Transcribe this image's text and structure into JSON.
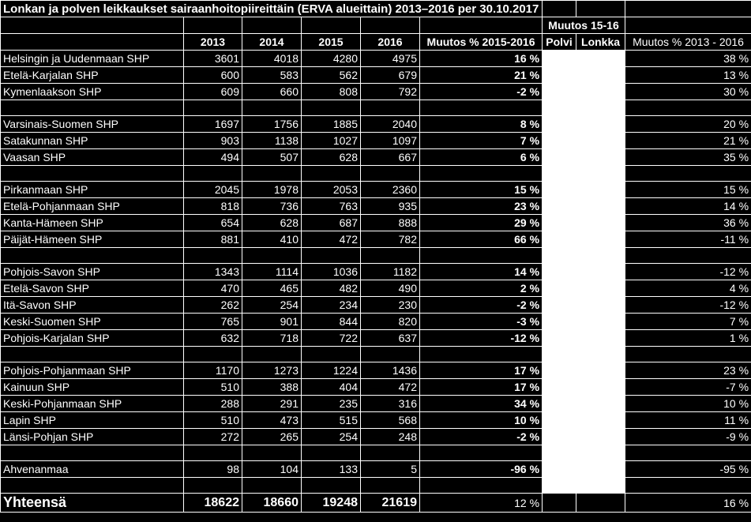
{
  "title": "Lonkan ja polven leikkaukset sairaanhoitopiireittäin (ERVA alueittain) 2013–2016 per 30.10.2017",
  "header_group": "Muutos 15-16",
  "headers": [
    "2013",
    "2014",
    "2015",
    "2016",
    "Muutos % 2015-2016",
    "Polvi",
    "Lonkka",
    "Muutos % 2013 - 2016"
  ],
  "groups": [
    [
      {
        "name": "Helsingin ja Uudenmaan SHP",
        "v2013": "3601",
        "v2014": "4018",
        "v2015": "4280",
        "v2016": "4975",
        "chg1516": "16 %",
        "chg1316": "38 %"
      },
      {
        "name": "Etelä-Karjalan SHP",
        "v2013": "600",
        "v2014": "583",
        "v2015": "562",
        "v2016": "679",
        "chg1516": "21 %",
        "chg1316": "13 %"
      },
      {
        "name": "Kymenlaakson SHP",
        "v2013": "609",
        "v2014": "660",
        "v2015": "808",
        "v2016": "792",
        "chg1516": "-2 %",
        "chg1316": "30 %"
      }
    ],
    [
      {
        "name": "Varsinais-Suomen SHP",
        "v2013": "1697",
        "v2014": "1756",
        "v2015": "1885",
        "v2016": "2040",
        "chg1516": "8 %",
        "chg1316": "20 %"
      },
      {
        "name": "Satakunnan SHP",
        "v2013": "903",
        "v2014": "1138",
        "v2015": "1027",
        "v2016": "1097",
        "chg1516": "7 %",
        "chg1316": "21 %"
      },
      {
        "name": "Vaasan SHP",
        "v2013": "494",
        "v2014": "507",
        "v2015": "628",
        "v2016": "667",
        "chg1516": "6 %",
        "chg1316": "35 %"
      }
    ],
    [
      {
        "name": "Pirkanmaan SHP",
        "v2013": "2045",
        "v2014": "1978",
        "v2015": "2053",
        "v2016": "2360",
        "chg1516": "15 %",
        "chg1316": "15 %"
      },
      {
        "name": "Etelä-Pohjanmaan SHP",
        "v2013": "818",
        "v2014": "736",
        "v2015": "763",
        "v2016": "935",
        "chg1516": "23 %",
        "chg1316": "14 %"
      },
      {
        "name": "Kanta-Hämeen SHP",
        "v2013": "654",
        "v2014": "628",
        "v2015": "687",
        "v2016": "888",
        "chg1516": "29 %",
        "chg1316": "36 %"
      },
      {
        "name": "Päijät-Hämeen SHP",
        "v2013": "881",
        "v2014": "410",
        "v2015": "472",
        "v2016": "782",
        "chg1516": "66 %",
        "chg1316": "-11 %"
      }
    ],
    [
      {
        "name": "Pohjois-Savon SHP",
        "v2013": "1343",
        "v2014": "1114",
        "v2015": "1036",
        "v2016": "1182",
        "chg1516": "14 %",
        "chg1316": "-12 %"
      },
      {
        "name": "Etelä-Savon SHP",
        "v2013": "470",
        "v2014": "465",
        "v2015": "482",
        "v2016": "490",
        "chg1516": "2 %",
        "chg1316": "4 %"
      },
      {
        "name": "Itä-Savon SHP",
        "v2013": "262",
        "v2014": "254",
        "v2015": "234",
        "v2016": "230",
        "chg1516": "-2 %",
        "chg1316": "-12 %"
      },
      {
        "name": "Keski-Suomen SHP",
        "v2013": "765",
        "v2014": "901",
        "v2015": "844",
        "v2016": "820",
        "chg1516": "-3 %",
        "chg1316": "7 %"
      },
      {
        "name": "Pohjois-Karjalan SHP",
        "v2013": "632",
        "v2014": "718",
        "v2015": "722",
        "v2016": "637",
        "chg1516": "-12 %",
        "chg1316": "1 %"
      }
    ],
    [
      {
        "name": "Pohjois-Pohjanmaan SHP",
        "v2013": "1170",
        "v2014": "1273",
        "v2015": "1224",
        "v2016": "1436",
        "chg1516": "17 %",
        "chg1316": "23 %"
      },
      {
        "name": "Kainuun SHP",
        "v2013": "510",
        "v2014": "388",
        "v2015": "404",
        "v2016": "472",
        "chg1516": "17 %",
        "chg1316": "-7 %"
      },
      {
        "name": "Keski-Pohjanmaan SHP",
        "v2013": "288",
        "v2014": "291",
        "v2015": "235",
        "v2016": "316",
        "chg1516": "34 %",
        "chg1316": "10 %"
      },
      {
        "name": "Lapin SHP",
        "v2013": "510",
        "v2014": "473",
        "v2015": "515",
        "v2016": "568",
        "chg1516": "10 %",
        "chg1316": "11 %"
      },
      {
        "name": "Länsi-Pohjan SHP",
        "v2013": "272",
        "v2014": "265",
        "v2015": "254",
        "v2016": "248",
        "chg1516": "-2 %",
        "chg1316": "-9 %"
      }
    ],
    [
      {
        "name": "Ahvenanmaa",
        "v2013": "98",
        "v2014": "104",
        "v2015": "133",
        "v2016": "5",
        "chg1516": "-96 %",
        "chg1316": "-95 %"
      }
    ]
  ],
  "total": {
    "name": "Yhteensä",
    "v2013": "18622",
    "v2014": "18660",
    "v2015": "19248",
    "v2016": "21619",
    "chg1516": "12 %",
    "chg1316": "16 %"
  }
}
